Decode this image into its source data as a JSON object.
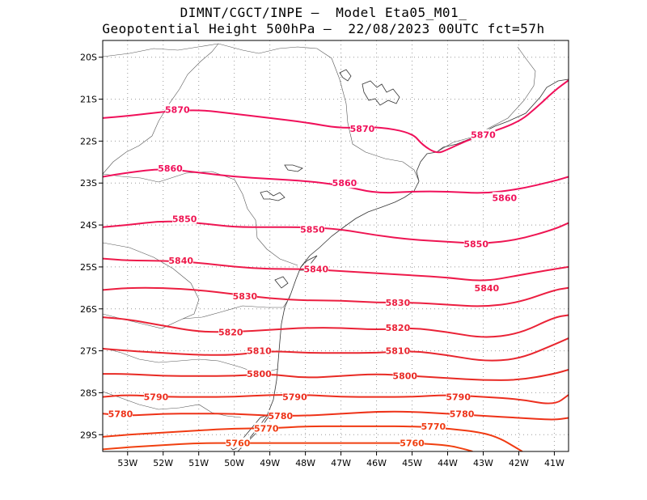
{
  "header": {
    "line1": "DIMNT/CGCT/INPE –  Model Eta05_M01_",
    "line2": "Geopotential Height 500hPa –  22/08/2023 00UTC fct=57h"
  },
  "colors": {
    "frame": "#000000",
    "grid": "#999999",
    "coast": "#333333"
  },
  "chart_data": {
    "type": "contour",
    "variable": "Geopotential Height 500hPa",
    "xlim": [
      -53.7,
      -40.6
    ],
    "ylim": [
      -29.4,
      -19.6
    ],
    "x_ticks": [
      {
        "value": -53,
        "label": "53W"
      },
      {
        "value": -52,
        "label": "52W"
      },
      {
        "value": -51,
        "label": "51W"
      },
      {
        "value": -50,
        "label": "50W"
      },
      {
        "value": -49,
        "label": "49W"
      },
      {
        "value": -48,
        "label": "48W"
      },
      {
        "value": -47,
        "label": "47W"
      },
      {
        "value": -46,
        "label": "46W"
      },
      {
        "value": -45,
        "label": "45W"
      },
      {
        "value": -44,
        "label": "44W"
      },
      {
        "value": -43,
        "label": "43W"
      },
      {
        "value": -42,
        "label": "42W"
      },
      {
        "value": -41,
        "label": "41W"
      }
    ],
    "y_ticks": [
      {
        "value": -20,
        "label": "20S"
      },
      {
        "value": -21,
        "label": "21S"
      },
      {
        "value": -22,
        "label": "22S"
      },
      {
        "value": -23,
        "label": "23S"
      },
      {
        "value": -24,
        "label": "24S"
      },
      {
        "value": -25,
        "label": "25S"
      },
      {
        "value": -26,
        "label": "26S"
      },
      {
        "value": -27,
        "label": "27S"
      },
      {
        "value": -28,
        "label": "28S"
      },
      {
        "value": -29,
        "label": "29S"
      }
    ],
    "contours": [
      {
        "level": 5870,
        "color": "#f0105a",
        "points": [
          [
            -53.7,
            -21.45
          ],
          [
            -53,
            -21.4
          ],
          [
            -52,
            -21.3
          ],
          [
            -51,
            -21.25
          ],
          [
            -50,
            -21.35
          ],
          [
            -49,
            -21.45
          ],
          [
            -48,
            -21.55
          ],
          [
            -47,
            -21.7
          ],
          [
            -46,
            -21.65
          ],
          [
            -45,
            -21.8
          ],
          [
            -44.7,
            -22.1
          ],
          [
            -44.3,
            -22.3
          ],
          [
            -44,
            -22.2
          ],
          [
            -43.5,
            -22.0
          ],
          [
            -43,
            -21.85
          ],
          [
            -42,
            -21.55
          ],
          [
            -41.5,
            -21.2
          ],
          [
            -41,
            -20.8
          ],
          [
            -40.6,
            -20.55
          ]
        ],
        "labels": [
          {
            "text": "5870",
            "x": -51.6,
            "y": -21.25
          },
          {
            "text": "5870",
            "x": -46.4,
            "y": -21.7
          },
          {
            "text": "5870",
            "x": -43.0,
            "y": -21.85
          }
        ]
      },
      {
        "level": 5860,
        "color": "#f0105a",
        "points": [
          [
            -53.7,
            -22.85
          ],
          [
            -53,
            -22.75
          ],
          [
            -52,
            -22.65
          ],
          [
            -51,
            -22.75
          ],
          [
            -50,
            -22.85
          ],
          [
            -49,
            -22.9
          ],
          [
            -48,
            -22.95
          ],
          [
            -47,
            -23.05
          ],
          [
            -46,
            -23.25
          ],
          [
            -45,
            -23.2
          ],
          [
            -44,
            -23.2
          ],
          [
            -43,
            -23.25
          ],
          [
            -42,
            -23.15
          ],
          [
            -41,
            -22.95
          ],
          [
            -40.6,
            -22.85
          ]
        ],
        "labels": [
          {
            "text": "5860",
            "x": -51.8,
            "y": -22.65
          },
          {
            "text": "5860",
            "x": -46.9,
            "y": -23.0
          },
          {
            "text": "5860",
            "x": -42.4,
            "y": -23.35
          }
        ]
      },
      {
        "level": 5850,
        "color": "#ee1552",
        "points": [
          [
            -53.7,
            -24.05
          ],
          [
            -53,
            -24.0
          ],
          [
            -52,
            -23.9
          ],
          [
            -51,
            -23.95
          ],
          [
            -50,
            -24.05
          ],
          [
            -49,
            -24.05
          ],
          [
            -48,
            -24.05
          ],
          [
            -47,
            -24.1
          ],
          [
            -46,
            -24.25
          ],
          [
            -45,
            -24.35
          ],
          [
            -44,
            -24.4
          ],
          [
            -43,
            -24.45
          ],
          [
            -42,
            -24.35
          ],
          [
            -41,
            -24.1
          ],
          [
            -40.6,
            -23.95
          ]
        ],
        "labels": [
          {
            "text": "5850",
            "x": -51.4,
            "y": -23.85
          },
          {
            "text": "5850",
            "x": -47.8,
            "y": -24.1
          },
          {
            "text": "5850",
            "x": -43.2,
            "y": -24.45
          }
        ]
      },
      {
        "level": 5840,
        "color": "#ee1a4a",
        "points": [
          [
            -53.7,
            -24.8
          ],
          [
            -53,
            -24.85
          ],
          [
            -52,
            -24.85
          ],
          [
            -51,
            -24.9
          ],
          [
            -50,
            -25.0
          ],
          [
            -49,
            -25.05
          ],
          [
            -48,
            -25.05
          ],
          [
            -47,
            -25.1
          ],
          [
            -46,
            -25.15
          ],
          [
            -45,
            -25.2
          ],
          [
            -44,
            -25.25
          ],
          [
            -43,
            -25.35
          ],
          [
            -42,
            -25.2
          ],
          [
            -41,
            -25.05
          ],
          [
            -40.6,
            -25.0
          ]
        ],
        "labels": [
          {
            "text": "5840",
            "x": -51.5,
            "y": -24.85
          },
          {
            "text": "5840",
            "x": -47.7,
            "y": -25.05
          },
          {
            "text": "5840",
            "x": -42.9,
            "y": -25.5
          }
        ]
      },
      {
        "level": 5830,
        "color": "#ec1e40",
        "points": [
          [
            -53.7,
            -25.55
          ],
          [
            -53,
            -25.5
          ],
          [
            -52,
            -25.5
          ],
          [
            -51,
            -25.55
          ],
          [
            -50,
            -25.65
          ],
          [
            -49,
            -25.75
          ],
          [
            -48,
            -25.8
          ],
          [
            -47,
            -25.8
          ],
          [
            -46,
            -25.85
          ],
          [
            -45,
            -25.85
          ],
          [
            -44,
            -25.9
          ],
          [
            -43,
            -25.95
          ],
          [
            -42,
            -25.85
          ],
          [
            -41,
            -25.55
          ],
          [
            -40.6,
            -25.5
          ]
        ],
        "labels": [
          {
            "text": "5830",
            "x": -49.7,
            "y": -25.7
          },
          {
            "text": "5830",
            "x": -45.4,
            "y": -25.85
          }
        ]
      },
      {
        "level": 5820,
        "color": "#ea2236",
        "points": [
          [
            -53.7,
            -26.2
          ],
          [
            -53,
            -26.25
          ],
          [
            -52,
            -26.4
          ],
          [
            -51,
            -26.55
          ],
          [
            -50,
            -26.55
          ],
          [
            -49,
            -26.5
          ],
          [
            -48,
            -26.45
          ],
          [
            -47,
            -26.45
          ],
          [
            -46,
            -26.5
          ],
          [
            -45,
            -26.45
          ],
          [
            -44,
            -26.55
          ],
          [
            -43,
            -26.7
          ],
          [
            -42,
            -26.6
          ],
          [
            -41,
            -26.2
          ],
          [
            -40.6,
            -26.15
          ]
        ],
        "labels": [
          {
            "text": "5820",
            "x": -50.1,
            "y": -26.55
          },
          {
            "text": "5820",
            "x": -45.4,
            "y": -26.45
          }
        ]
      },
      {
        "level": 5810,
        "color": "#e8262e",
        "points": [
          [
            -53.7,
            -26.95
          ],
          [
            -53,
            -27.0
          ],
          [
            -52,
            -27.05
          ],
          [
            -51,
            -27.1
          ],
          [
            -50,
            -27.1
          ],
          [
            -49,
            -27.0
          ],
          [
            -48,
            -27.05
          ],
          [
            -47,
            -27.05
          ],
          [
            -46,
            -27.05
          ],
          [
            -45,
            -27.0
          ],
          [
            -44,
            -27.1
          ],
          [
            -43,
            -27.25
          ],
          [
            -42,
            -27.2
          ],
          [
            -41,
            -26.85
          ],
          [
            -40.6,
            -26.7
          ]
        ],
        "labels": [
          {
            "text": "5810",
            "x": -49.3,
            "y": -27.0
          },
          {
            "text": "5810",
            "x": -45.4,
            "y": -27.0
          }
        ]
      },
      {
        "level": 5800,
        "color": "#e82a24",
        "points": [
          [
            -53.7,
            -27.55
          ],
          [
            -53,
            -27.55
          ],
          [
            -52,
            -27.6
          ],
          [
            -51,
            -27.6
          ],
          [
            -50,
            -27.6
          ],
          [
            -49,
            -27.55
          ],
          [
            -48,
            -27.65
          ],
          [
            -47,
            -27.6
          ],
          [
            -46,
            -27.55
          ],
          [
            -45,
            -27.6
          ],
          [
            -44,
            -27.65
          ],
          [
            -43,
            -27.7
          ],
          [
            -42,
            -27.7
          ],
          [
            -41,
            -27.55
          ],
          [
            -40.6,
            -27.45
          ]
        ],
        "labels": [
          {
            "text": "5800",
            "x": -49.3,
            "y": -27.55
          },
          {
            "text": "5800",
            "x": -45.2,
            "y": -27.6
          }
        ]
      },
      {
        "level": 5790,
        "color": "#ec2e1e",
        "points": [
          [
            -53.7,
            -28.1
          ],
          [
            -53,
            -28.05
          ],
          [
            -52,
            -28.1
          ],
          [
            -51,
            -28.1
          ],
          [
            -50,
            -28.1
          ],
          [
            -49,
            -28.05
          ],
          [
            -48,
            -28.05
          ],
          [
            -47,
            -28.1
          ],
          [
            -46,
            -28.1
          ],
          [
            -45,
            -28.1
          ],
          [
            -44,
            -28.05
          ],
          [
            -43,
            -28.1
          ],
          [
            -42,
            -28.15
          ],
          [
            -41,
            -28.3
          ],
          [
            -40.6,
            -28.05
          ]
        ],
        "labels": [
          {
            "text": "5790",
            "x": -52.2,
            "y": -28.1
          },
          {
            "text": "5790",
            "x": -48.3,
            "y": -28.1
          },
          {
            "text": "5790",
            "x": -43.7,
            "y": -28.1
          }
        ]
      },
      {
        "level": 5780,
        "color": "#ee3218",
        "points": [
          [
            -53.7,
            -28.5
          ],
          [
            -53,
            -28.55
          ],
          [
            -52,
            -28.5
          ],
          [
            -51,
            -28.5
          ],
          [
            -50,
            -28.5
          ],
          [
            -49,
            -28.55
          ],
          [
            -48,
            -28.55
          ],
          [
            -47,
            -28.5
          ],
          [
            -46,
            -28.45
          ],
          [
            -45,
            -28.45
          ],
          [
            -44,
            -28.5
          ],
          [
            -43,
            -28.55
          ],
          [
            -42,
            -28.6
          ],
          [
            -41,
            -28.65
          ],
          [
            -40.6,
            -28.6
          ]
        ],
        "labels": [
          {
            "text": "5780",
            "x": -53.2,
            "y": -28.5
          },
          {
            "text": "5780",
            "x": -48.7,
            "y": -28.55
          },
          {
            "text": "5780",
            "x": -43.6,
            "y": -28.5
          }
        ]
      },
      {
        "level": 5770,
        "color": "#f03a12",
        "points": [
          [
            -53.7,
            -29.05
          ],
          [
            -53,
            -29.0
          ],
          [
            -52,
            -28.95
          ],
          [
            -51,
            -28.9
          ],
          [
            -50,
            -28.85
          ],
          [
            -49,
            -28.85
          ],
          [
            -48,
            -28.8
          ],
          [
            -47,
            -28.8
          ],
          [
            -46,
            -28.8
          ],
          [
            -45,
            -28.8
          ],
          [
            -44,
            -28.85
          ],
          [
            -43,
            -28.95
          ],
          [
            -42.5,
            -29.1
          ],
          [
            -42.1,
            -29.3
          ],
          [
            -41.9,
            -29.4
          ]
        ],
        "labels": [
          {
            "text": "5770",
            "x": -49.1,
            "y": -28.85
          },
          {
            "text": "5770",
            "x": -44.4,
            "y": -28.8
          }
        ]
      },
      {
        "level": 5760,
        "color": "#f04010",
        "points": [
          [
            -53.7,
            -29.35
          ],
          [
            -53,
            -29.3
          ],
          [
            -52,
            -29.25
          ],
          [
            -51,
            -29.2
          ],
          [
            -50,
            -29.2
          ],
          [
            -49,
            -29.2
          ],
          [
            -48,
            -29.2
          ],
          [
            -47,
            -29.2
          ],
          [
            -46,
            -29.2
          ],
          [
            -45,
            -29.2
          ],
          [
            -44,
            -29.25
          ],
          [
            -43.5,
            -29.35
          ],
          [
            -43.3,
            -29.4
          ]
        ],
        "labels": [
          {
            "text": "5760",
            "x": -49.9,
            "y": -29.2
          },
          {
            "text": "5760",
            "x": -45.0,
            "y": -29.2
          }
        ]
      }
    ]
  }
}
